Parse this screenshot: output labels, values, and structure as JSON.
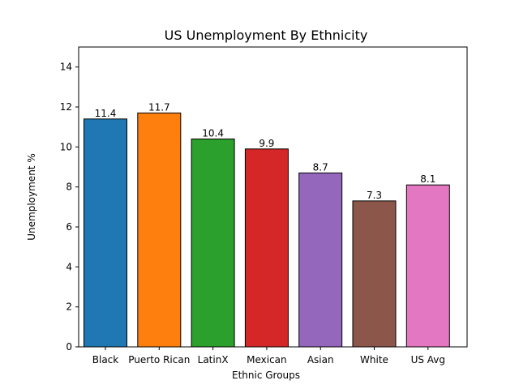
{
  "chart_data": {
    "type": "bar",
    "title": "US Unemployment By Ethnicity",
    "xlabel": "Ethnic Groups",
    "ylabel": "Unemployment %",
    "ylim": [
      0,
      15
    ],
    "yticks": [
      0,
      2,
      4,
      6,
      8,
      10,
      12,
      14
    ],
    "grid": false,
    "categories": [
      "Black",
      "Puerto Rican",
      "LatinX",
      "Mexican",
      "Asian",
      "White",
      "US Avg"
    ],
    "values": [
      11.4,
      11.7,
      10.4,
      9.9,
      8.7,
      7.3,
      8.1
    ],
    "data_labels": [
      "11.4",
      "11.7",
      "10.4",
      "9.9",
      "8.7",
      "7.3",
      "8.1"
    ],
    "colors": [
      "#1f77b4",
      "#ff7f0e",
      "#2ca02c",
      "#d62728",
      "#9467bd",
      "#8c564b",
      "#e377c2"
    ]
  }
}
